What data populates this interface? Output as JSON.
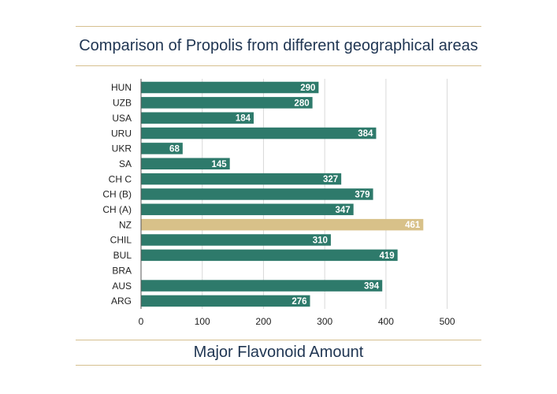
{
  "chart_data": {
    "type": "bar",
    "orientation": "horizontal",
    "title": "Comparison of Propolis from different geographical areas",
    "xlabel": "Major Flavonoid Amount",
    "ylabel": "",
    "categories": [
      "HUN",
      "UZB",
      "USA",
      "URU",
      "UKR",
      "SA",
      "CH C",
      "CH (B)",
      "CH (A)",
      "NZ",
      "CHIL",
      "BUL",
      "BRA",
      "AUS",
      "ARG"
    ],
    "values": [
      290,
      280,
      184,
      384,
      68,
      145,
      327,
      379,
      347,
      461,
      310,
      419,
      null,
      394,
      276
    ],
    "data_labels": [
      "290",
      "280",
      "184",
      "384",
      "68",
      "145",
      "327",
      "379",
      "347",
      "461",
      "310",
      "419",
      "",
      "394",
      "276"
    ],
    "xlim": [
      0,
      500
    ],
    "xticks": [
      "0",
      "100",
      "200",
      "300",
      "400",
      "500"
    ],
    "grid": "vertical",
    "bar_color": "#2e7a6b",
    "highlight_color": "#d8c189",
    "highlight_category": "NZ",
    "gridline_color": "#d9d9d9",
    "rule_color": "#d6c08f",
    "text_color": "#1f3552"
  }
}
